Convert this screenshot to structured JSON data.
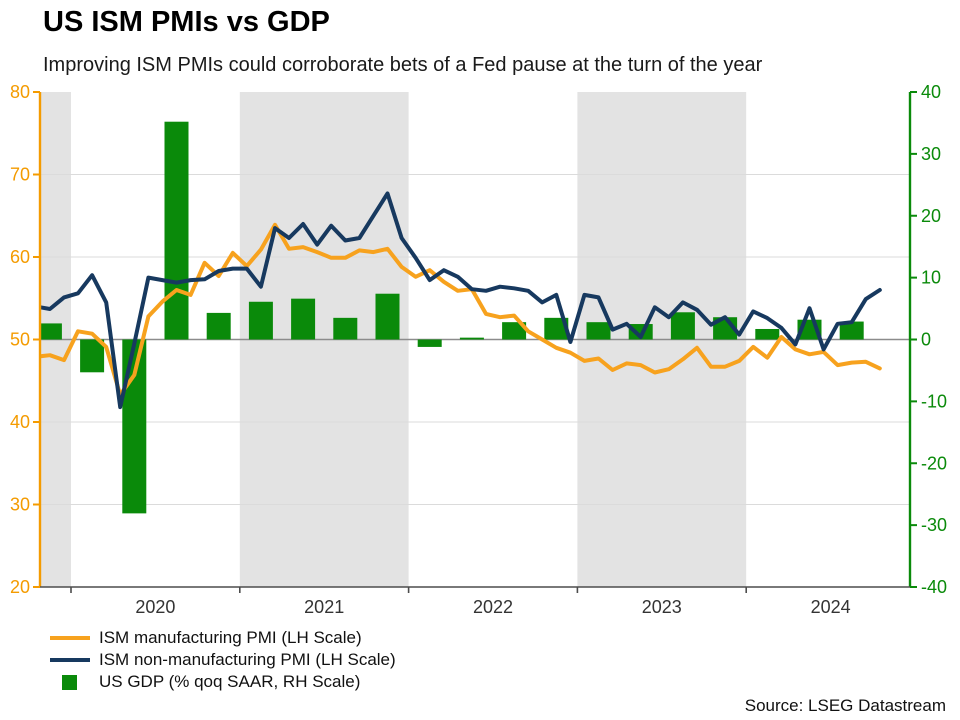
{
  "title": "US ISM PMIs vs GDP",
  "subtitle": "Improving ISM PMIs could corroborate bets of a Fed pause at the turn of the year",
  "source": "Source: LSEG Datastream",
  "legend": [
    {
      "label": "ISM manufacturing PMI (LH Scale)",
      "swatch": "line",
      "color": "#F7A21E"
    },
    {
      "label": "ISM non-manufacturing PMI (LH Scale)",
      "swatch": "line",
      "color": "#17395F"
    },
    {
      "label": "US GDP (% qoq SAAR, RH Scale)",
      "swatch": "square",
      "color": "#0A8A0A"
    }
  ],
  "chart_data": {
    "type": "mixed line + bar",
    "left_axis": {
      "ticks": [
        20,
        30,
        40,
        50,
        60,
        70,
        80
      ],
      "min": 20,
      "max": 80,
      "color": "#F49B00",
      "gridlines": [
        30,
        40,
        60,
        70
      ],
      "zero_reference": 50
    },
    "right_axis": {
      "ticks": [
        -40,
        -30,
        -20,
        -10,
        0,
        10,
        20,
        30,
        40
      ],
      "min": -40,
      "max": 40,
      "color": "#0A8A0A"
    },
    "x_axis": {
      "start_month": "2019-10",
      "end_month": "2024-10",
      "year_labels": [
        "2020",
        "2021",
        "2022",
        "2023",
        "2024"
      ],
      "shaded_years": [
        2019,
        2021,
        2023
      ],
      "band_color": "#E3E3E3"
    },
    "series": [
      {
        "name": "ISM manufacturing PMI (LH Scale)",
        "type": "line",
        "axis": "left",
        "color": "#F7A21E",
        "frequency": "monthly",
        "start": "2019-10",
        "values": [
          47.9,
          48.1,
          47.5,
          51.0,
          50.7,
          49.1,
          43.3,
          45.7,
          52.8,
          54.6,
          56.0,
          55.4,
          59.3,
          57.7,
          60.5,
          58.9,
          60.9,
          63.9,
          61.0,
          61.2,
          60.6,
          59.9,
          59.9,
          60.8,
          60.6,
          61.0,
          58.8,
          57.6,
          58.4,
          57.0,
          55.9,
          56.1,
          53.1,
          52.7,
          52.9,
          51.0,
          50.0,
          49.0,
          48.4,
          47.4,
          47.7,
          46.3,
          47.1,
          46.9,
          46.0,
          46.4,
          47.6,
          49.0,
          46.7,
          46.7,
          47.4,
          49.1,
          47.8,
          50.3,
          48.8,
          48.2,
          48.5,
          46.9,
          47.2,
          47.3,
          46.5
        ]
      },
      {
        "name": "ISM non-manufacturing PMI (LH Scale)",
        "type": "line",
        "axis": "left",
        "color": "#17395F",
        "frequency": "monthly",
        "start": "2019-10",
        "values": [
          54.0,
          53.7,
          55.1,
          55.6,
          57.8,
          54.5,
          41.8,
          49.5,
          57.5,
          57.2,
          56.9,
          57.2,
          57.3,
          58.3,
          58.6,
          58.6,
          56.4,
          63.5,
          62.3,
          64.0,
          61.5,
          63.8,
          62.0,
          62.3,
          65.0,
          67.7,
          62.3,
          59.9,
          57.2,
          58.4,
          57.6,
          56.1,
          55.9,
          56.4,
          56.2,
          55.9,
          54.5,
          55.4,
          49.7,
          55.4,
          55.1,
          51.2,
          51.9,
          50.3,
          53.9,
          52.7,
          54.5,
          53.6,
          51.8,
          52.7,
          50.6,
          53.4,
          52.6,
          51.4,
          49.4,
          53.8,
          48.8,
          51.9,
          52.1,
          54.9,
          56.0
        ]
      },
      {
        "name": "US GDP (% qoq SAAR, RH Scale)",
        "type": "bar",
        "axis": "right",
        "color": "#0A8A0A",
        "frequency": "quarterly",
        "start": "2019-Q4",
        "values": [
          2.6,
          -5.3,
          -28.1,
          35.2,
          4.3,
          6.1,
          6.6,
          3.5,
          7.4,
          -1.2,
          0.3,
          2.8,
          3.5,
          2.8,
          2.5,
          4.4,
          3.6,
          1.7,
          3.2,
          2.9
        ]
      }
    ]
  }
}
